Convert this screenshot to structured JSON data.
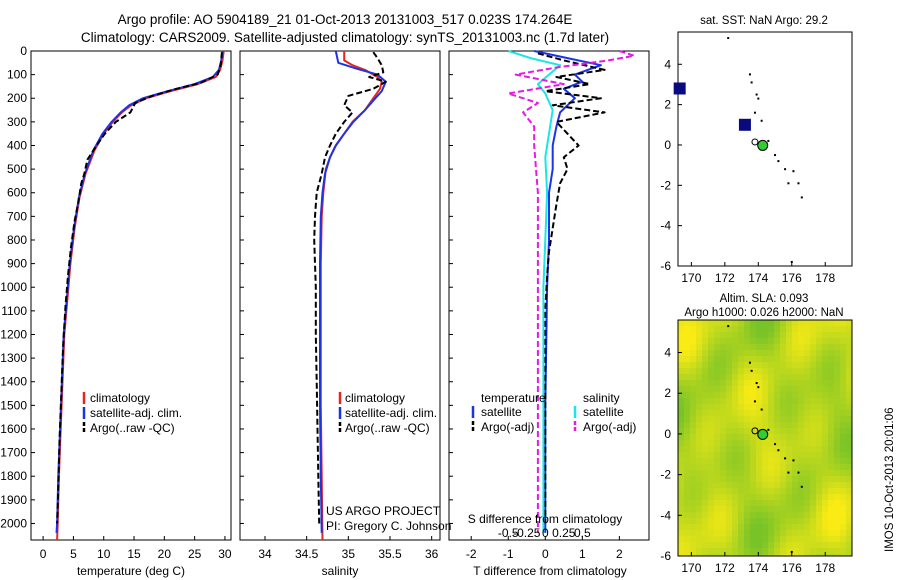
{
  "header": {
    "title_line1": "Argo profile: AO 5904189_21 01-Oct-2013 20131003_517 0.023S 174.264E",
    "title_line2": "Climatology: CARS2009. Satellite-adjusted climatology: synTS_20131003.nc (1.7d later)"
  },
  "colors": {
    "climatology": "#e8251c",
    "satellite": "#1c33e8",
    "argo": "#000000",
    "sat_salinity": "#19e6e6",
    "argo_adj_salinity": "#e619e6",
    "land_marker": "#0a0a80",
    "float_marker": "#33cc33"
  },
  "panel_text": {
    "temp_xlabel": "temperature (deg C)",
    "sal_xlabel": "salinity",
    "diff_xlabel": "T difference from climatology",
    "diff_top_label": "S difference from climatology",
    "legend_climatology": "climatology",
    "legend_satellite": "satellite-adj. clim.",
    "legend_argo": "Argo(..raw -QC)",
    "diff_legend_temperature": "temperature",
    "diff_legend_salinity": "salinity",
    "diff_legend_satellite": "satellite",
    "diff_legend_argo": "Argo(-adj)",
    "project_line1": "US ARGO PROJECT",
    "project_line2": "PI: Gregory C. Johnson",
    "map1_title": "sat. SST: NaN Argo: 29.2",
    "map2_title_line1": "Altim. SLA: 0.093",
    "map2_title_line2": "Argo h1000: 0.026 h2000: NaN",
    "stamp": "IMOS 10-Oct-2013 20:01:06"
  },
  "chart_data": [
    {
      "type": "line",
      "panel": "temperature",
      "xlabel": "temperature (deg C)",
      "ylabel": "",
      "xlim": [
        -2,
        31
      ],
      "ylim": [
        2070,
        0
      ],
      "xticks": [
        0,
        5,
        10,
        15,
        20,
        25,
        30
      ],
      "yticks": [
        0,
        100,
        200,
        300,
        400,
        500,
        600,
        700,
        800,
        900,
        1000,
        1100,
        1200,
        1300,
        1400,
        1500,
        1600,
        1700,
        1800,
        1900,
        2000
      ],
      "series": [
        {
          "name": "climatology",
          "color": "#e8251c",
          "style": "solid",
          "points": [
            [
              29.8,
              0
            ],
            [
              29.6,
              40
            ],
            [
              29.2,
              80
            ],
            [
              28.5,
              110
            ],
            [
              25.5,
              140
            ],
            [
              21.0,
              170
            ],
            [
              17.0,
              200
            ],
            [
              14.5,
              230
            ],
            [
              13.0,
              260
            ],
            [
              11.5,
              300
            ],
            [
              10.0,
              350
            ],
            [
              8.5,
              420
            ],
            [
              7.0,
              520
            ],
            [
              6.0,
              620
            ],
            [
              5.2,
              750
            ],
            [
              4.5,
              900
            ],
            [
              4.0,
              1050
            ],
            [
              3.5,
              1200
            ],
            [
              3.2,
              1400
            ],
            [
              2.9,
              1600
            ],
            [
              2.6,
              1800
            ],
            [
              2.4,
              2000
            ],
            [
              2.3,
              2070
            ]
          ]
        },
        {
          "name": "satellite-adj. clim.",
          "color": "#1c33e8",
          "style": "solid",
          "points": [
            [
              29.6,
              0
            ],
            [
              29.4,
              40
            ],
            [
              29.0,
              80
            ],
            [
              28.0,
              110
            ],
            [
              25.0,
              140
            ],
            [
              20.5,
              170
            ],
            [
              16.5,
              200
            ],
            [
              14.2,
              230
            ],
            [
              12.8,
              260
            ],
            [
              11.3,
              300
            ],
            [
              9.8,
              350
            ],
            [
              8.3,
              420
            ],
            [
              6.9,
              520
            ],
            [
              5.9,
              620
            ],
            [
              5.1,
              750
            ],
            [
              4.4,
              900
            ],
            [
              3.9,
              1050
            ],
            [
              3.4,
              1200
            ],
            [
              3.1,
              1400
            ],
            [
              2.8,
              1600
            ],
            [
              2.5,
              1800
            ],
            [
              2.3,
              2000
            ],
            [
              2.2,
              2040
            ]
          ]
        },
        {
          "name": "Argo(..raw -QC)",
          "color": "#000000",
          "style": "dashed",
          "points": [
            [
              29.5,
              5
            ],
            [
              29.3,
              60
            ],
            [
              28.8,
              100
            ],
            [
              26.0,
              135
            ],
            [
              22.0,
              160
            ],
            [
              18.0,
              190
            ],
            [
              15.2,
              220
            ],
            [
              14.4,
              260
            ],
            [
              12.0,
              300
            ],
            [
              10.2,
              350
            ],
            [
              8.8,
              400
            ],
            [
              7.3,
              460
            ],
            [
              6.8,
              520
            ],
            [
              6.3,
              560
            ],
            [
              5.8,
              640
            ],
            [
              5.2,
              720
            ],
            [
              4.6,
              830
            ],
            [
              4.1,
              950
            ],
            [
              3.7,
              1080
            ],
            [
              3.3,
              1250
            ],
            [
              3.0,
              1450
            ],
            [
              2.7,
              1650
            ],
            [
              2.5,
              1850
            ],
            [
              2.3,
              2000
            ]
          ]
        }
      ]
    },
    {
      "type": "line",
      "panel": "salinity",
      "xlabel": "salinity",
      "ylabel": "",
      "xlim": [
        33.7,
        36.1
      ],
      "ylim": [
        2070,
        0
      ],
      "xticks": [
        34,
        34.5,
        35,
        35.5,
        36
      ],
      "series": [
        {
          "name": "climatology",
          "color": "#e8251c",
          "style": "solid",
          "points": [
            [
              34.95,
              0
            ],
            [
              34.95,
              40
            ],
            [
              35.05,
              60
            ],
            [
              35.2,
              80
            ],
            [
              35.35,
              110
            ],
            [
              35.4,
              130
            ],
            [
              35.38,
              160
            ],
            [
              35.3,
              200
            ],
            [
              35.2,
              250
            ],
            [
              35.05,
              300
            ],
            [
              34.95,
              350
            ],
            [
              34.85,
              400
            ],
            [
              34.78,
              450
            ],
            [
              34.73,
              500
            ],
            [
              34.7,
              600
            ],
            [
              34.68,
              700
            ],
            [
              34.67,
              900
            ],
            [
              34.67,
              1200
            ],
            [
              34.67,
              1500
            ],
            [
              34.68,
              1800
            ],
            [
              34.69,
              2070
            ]
          ]
        },
        {
          "name": "satellite-adj. clim.",
          "color": "#1c33e8",
          "style": "solid",
          "points": [
            [
              34.85,
              0
            ],
            [
              34.88,
              50
            ],
            [
              35.1,
              75
            ],
            [
              35.35,
              100
            ],
            [
              35.45,
              130
            ],
            [
              35.4,
              170
            ],
            [
              35.3,
              210
            ],
            [
              35.2,
              250
            ],
            [
              35.06,
              300
            ],
            [
              34.95,
              350
            ],
            [
              34.85,
              400
            ],
            [
              34.78,
              450
            ],
            [
              34.72,
              520
            ],
            [
              34.69,
              600
            ],
            [
              34.67,
              700
            ],
            [
              34.66,
              900
            ],
            [
              34.66,
              1200
            ],
            [
              34.66,
              1500
            ],
            [
              34.67,
              1800
            ],
            [
              34.68,
              2040
            ]
          ]
        },
        {
          "name": "Argo(..raw -QC)",
          "color": "#000000",
          "style": "dashed",
          "points": [
            [
              35.3,
              5
            ],
            [
              35.35,
              30
            ],
            [
              35.4,
              60
            ],
            [
              35.42,
              90
            ],
            [
              35.25,
              110
            ],
            [
              35.45,
              130
            ],
            [
              35.3,
              160
            ],
            [
              35.0,
              190
            ],
            [
              34.95,
              230
            ],
            [
              35.05,
              260
            ],
            [
              34.95,
              300
            ],
            [
              34.85,
              350
            ],
            [
              34.78,
              400
            ],
            [
              34.72,
              450
            ],
            [
              34.68,
              520
            ],
            [
              34.62,
              600
            ],
            [
              34.6,
              700
            ],
            [
              34.59,
              800
            ],
            [
              34.6,
              900
            ],
            [
              34.61,
              1000
            ],
            [
              34.61,
              1200
            ],
            [
              34.62,
              1400
            ],
            [
              34.63,
              1600
            ],
            [
              34.64,
              1800
            ],
            [
              34.65,
              2000
            ]
          ]
        }
      ]
    },
    {
      "type": "line",
      "panel": "difference",
      "xlabel": "T difference from climatology",
      "xlim": [
        -2.6,
        2.8
      ],
      "xticks": [
        -2,
        -1,
        0,
        1,
        2
      ],
      "top_axis_label": "S difference from climatology",
      "top_ticks": [
        "-0.5",
        "-0.25",
        "0",
        "0.25",
        "0.5"
      ],
      "ylim": [
        2070,
        0
      ],
      "series": [
        {
          "name": "temperature satellite",
          "color": "#1c33e8",
          "style": "solid",
          "points": [
            [
              -0.3,
              0
            ],
            [
              0.6,
              30
            ],
            [
              1.5,
              60
            ],
            [
              0.8,
              100
            ],
            [
              1.0,
              130
            ],
            [
              0.5,
              160
            ],
            [
              0.8,
              200
            ],
            [
              0.4,
              260
            ],
            [
              0.3,
              320
            ],
            [
              0.2,
              400
            ],
            [
              0.2,
              500
            ],
            [
              0.1,
              600
            ],
            [
              0.1,
              800
            ],
            [
              0.05,
              1000
            ],
            [
              0.0,
              1500
            ],
            [
              0.0,
              2040
            ]
          ]
        },
        {
          "name": "temperature Argo(-adj)",
          "color": "#000000",
          "style": "dashed",
          "points": [
            [
              -0.2,
              10
            ],
            [
              0.5,
              40
            ],
            [
              1.6,
              80
            ],
            [
              0.3,
              110
            ],
            [
              1.2,
              140
            ],
            [
              0.0,
              170
            ],
            [
              1.5,
              200
            ],
            [
              0.2,
              230
            ],
            [
              1.6,
              260
            ],
            [
              0.3,
              300
            ],
            [
              0.6,
              350
            ],
            [
              0.9,
              400
            ],
            [
              0.5,
              450
            ],
            [
              0.6,
              500
            ],
            [
              0.4,
              560
            ],
            [
              0.3,
              650
            ],
            [
              0.2,
              750
            ],
            [
              0.1,
              850
            ],
            [
              0.05,
              950
            ],
            [
              0.0,
              1100
            ],
            [
              0.0,
              1400
            ],
            [
              0.0,
              1700
            ],
            [
              0.0,
              2000
            ]
          ]
        },
        {
          "name": "salinity satellite",
          "color": "#19e6e6",
          "style": "solid",
          "points": [
            [
              -1.0,
              0
            ],
            [
              -0.4,
              30
            ],
            [
              0.4,
              60
            ],
            [
              0.1,
              100
            ],
            [
              -0.2,
              140
            ],
            [
              0.0,
              180
            ],
            [
              0.2,
              250
            ],
            [
              0.1,
              350
            ],
            [
              0.0,
              450
            ],
            [
              0.05,
              600
            ],
            [
              0.0,
              800
            ],
            [
              -0.05,
              1000
            ],
            [
              -0.05,
              1400
            ],
            [
              -0.05,
              1800
            ],
            [
              -0.05,
              2040
            ]
          ]
        },
        {
          "name": "salinity Argo(-adj)",
          "color": "#e619e6",
          "style": "dashed",
          "points": [
            [
              2.0,
              0
            ],
            [
              2.4,
              20
            ],
            [
              1.7,
              40
            ],
            [
              0.3,
              70
            ],
            [
              -0.8,
              100
            ],
            [
              0.5,
              140
            ],
            [
              -1.0,
              180
            ],
            [
              -0.2,
              220
            ],
            [
              -0.6,
              260
            ],
            [
              -0.3,
              320
            ],
            [
              -0.3,
              400
            ],
            [
              -0.25,
              500
            ],
            [
              -0.2,
              600
            ],
            [
              -0.2,
              800
            ],
            [
              -0.2,
              1000
            ],
            [
              -0.2,
              1300
            ],
            [
              -0.2,
              1600
            ],
            [
              -0.2,
              1900
            ],
            [
              -0.2,
              2040
            ]
          ]
        }
      ]
    },
    {
      "type": "scatter",
      "panel": "map_sst",
      "title": "sat. SST: NaN Argo: 29.2",
      "xlim": [
        169.2,
        179.6
      ],
      "ylim": [
        -6,
        5.6
      ],
      "xticks": [
        170,
        172,
        174,
        176,
        178
      ],
      "yticks": [
        -6,
        -4,
        -2,
        0,
        2,
        4
      ],
      "float_position": [
        174.264,
        -0.023
      ],
      "previous_position": [
        173.8,
        0.15
      ],
      "land_squares": [
        [
          169.3,
          2.8
        ],
        [
          173.2,
          1.0
        ]
      ]
    },
    {
      "type": "heatmap",
      "panel": "map_sla",
      "title": "Altim. SLA: 0.093 / Argo h1000: 0.026 h2000: NaN",
      "xlim": [
        169.2,
        179.6
      ],
      "ylim": [
        -6,
        5.6
      ],
      "xticks": [
        170,
        172,
        174,
        176,
        178
      ],
      "yticks": [
        -6,
        -4,
        -2,
        0,
        2,
        4
      ],
      "float_position": [
        174.264,
        -0.023
      ],
      "previous_position": [
        173.8,
        0.15
      ]
    }
  ]
}
